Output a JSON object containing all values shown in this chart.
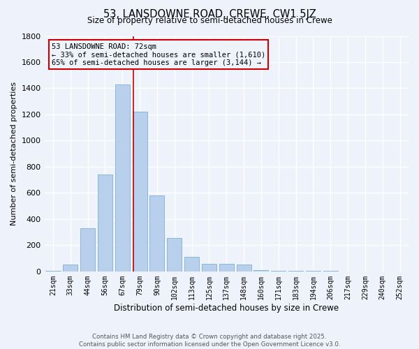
{
  "title": "53, LANSDOWNE ROAD, CREWE, CW1 5JZ",
  "subtitle": "Size of property relative to semi-detached houses in Crewe",
  "xlabel": "Distribution of semi-detached houses by size in Crewe",
  "ylabel": "Number of semi-detached properties",
  "property_label": "53 LANSDOWNE ROAD: 72sqm",
  "smaller_pct": 33,
  "smaller_count": 1610,
  "larger_pct": 65,
  "larger_count": 3144,
  "bar_color": "#b8d0eb",
  "bar_edge_color": "#7aafd4",
  "marker_color": "#cc0000",
  "annotation_box_color": "#cc0000",
  "background_color": "#eef2fb",
  "grid_color": "#ffffff",
  "categories": [
    "21sqm",
    "33sqm",
    "44sqm",
    "56sqm",
    "67sqm",
    "79sqm",
    "90sqm",
    "102sqm",
    "113sqm",
    "125sqm",
    "137sqm",
    "148sqm",
    "160sqm",
    "171sqm",
    "183sqm",
    "194sqm",
    "206sqm",
    "217sqm",
    "229sqm",
    "240sqm",
    "252sqm"
  ],
  "values": [
    5,
    50,
    330,
    740,
    1430,
    1220,
    580,
    255,
    110,
    60,
    60,
    55,
    10,
    5,
    3,
    2,
    2,
    1,
    1,
    1,
    1
  ],
  "ylim": [
    0,
    1800
  ],
  "yticks": [
    0,
    200,
    400,
    600,
    800,
    1000,
    1200,
    1400,
    1600,
    1800
  ],
  "marker_bin_index": 5,
  "footer_text": "Contains HM Land Registry data © Crown copyright and database right 2025.\nContains public sector information licensed under the Open Government Licence v3.0."
}
